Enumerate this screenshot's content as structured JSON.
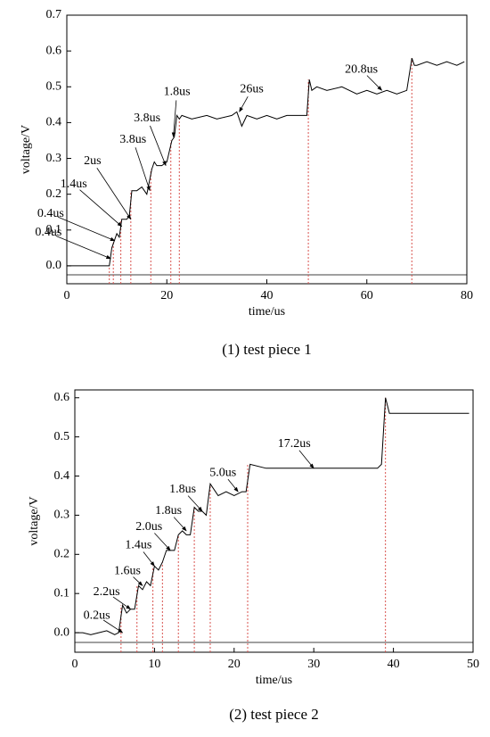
{
  "chart_data": [
    {
      "type": "line",
      "caption": "(1) test piece 1",
      "xlabel": "time/us",
      "ylabel": "voltage/V",
      "xlim": [
        0,
        80
      ],
      "xticks": [
        0,
        20,
        40,
        60,
        80
      ],
      "ylim": [
        -0.05,
        0.7
      ],
      "yticks": [
        {
          "value": 0,
          "label": "0.0"
        },
        0.1,
        0.2,
        0.3,
        0.4,
        0.5,
        0.6,
        0.7
      ],
      "color": "#000000",
      "marker_color": "#d9534f",
      "hline": -0.025,
      "x": [
        0,
        8.5,
        9,
        9.5,
        10,
        10.5,
        11,
        12,
        12.5,
        13,
        14,
        15,
        16,
        17,
        17.5,
        18,
        19,
        20,
        21,
        21.5,
        22,
        22.5,
        23,
        25,
        28,
        30,
        33,
        34,
        35,
        36,
        38,
        40,
        42,
        44,
        46,
        48,
        48.5,
        49,
        50,
        52,
        55,
        58,
        60,
        62,
        64,
        66,
        68,
        69,
        69.5,
        70,
        72,
        74,
        76,
        78,
        79.5
      ],
      "values": [
        0,
        0,
        0.05,
        0.07,
        0.09,
        0.08,
        0.13,
        0.13,
        0.14,
        0.21,
        0.21,
        0.22,
        0.2,
        0.27,
        0.29,
        0.28,
        0.28,
        0.29,
        0.35,
        0.36,
        0.42,
        0.41,
        0.42,
        0.41,
        0.42,
        0.41,
        0.42,
        0.43,
        0.39,
        0.42,
        0.41,
        0.42,
        0.41,
        0.42,
        0.42,
        0.42,
        0.52,
        0.49,
        0.5,
        0.49,
        0.5,
        0.48,
        0.49,
        0.48,
        0.49,
        0.48,
        0.49,
        0.58,
        0.56,
        0.56,
        0.57,
        0.56,
        0.57,
        0.56,
        0.57
      ],
      "markers": [
        8.5,
        9.3,
        10.8,
        12.8,
        16.8,
        20.8,
        22.5,
        48.3,
        69
      ],
      "annotations": [
        {
          "text": "0.4us",
          "x": 8.8,
          "y": 0.02
        },
        {
          "text": "0.4us",
          "x": 9.6,
          "y": 0.07
        },
        {
          "text": "1.4us",
          "x": 11,
          "y": 0.11
        },
        {
          "text": "2us",
          "x": 12.8,
          "y": 0.13
        },
        {
          "text": "3.8us",
          "x": 16.6,
          "y": 0.21
        },
        {
          "text": "3.8us",
          "x": 19.8,
          "y": 0.28
        },
        {
          "text": "1.8us",
          "x": 21.3,
          "y": 0.36
        },
        {
          "text": "26us",
          "x": 34.5,
          "y": 0.43
        },
        {
          "text": "20.8us",
          "x": 63,
          "y": 0.49
        }
      ]
    },
    {
      "type": "line",
      "caption": "(2) test piece 2",
      "xlabel": "time/us",
      "ylabel": "voltage/V",
      "xlim": [
        0,
        50
      ],
      "xticks": [
        0,
        10,
        20,
        30,
        40,
        50
      ],
      "ylim": [
        -0.05,
        0.62
      ],
      "yticks": [
        {
          "value": 0,
          "label": "0.0"
        },
        0.1,
        0.2,
        0.3,
        0.4,
        0.5,
        0.6
      ],
      "color": "#000000",
      "marker_color": "#d9534f",
      "hline": -0.025,
      "x": [
        0,
        1,
        2,
        3,
        4,
        5,
        5.5,
        6,
        6.5,
        7,
        7.5,
        8,
        8.5,
        9,
        9.5,
        10,
        10.5,
        11,
        11.5,
        12,
        12.5,
        13,
        13.5,
        14,
        14.5,
        15,
        15.5,
        16,
        16.5,
        17,
        18,
        19,
        20,
        21,
        21.5,
        22,
        24,
        26,
        28,
        30,
        32,
        34,
        36,
        38,
        38.5,
        39,
        39.5,
        40,
        42,
        44,
        46,
        48,
        49.5
      ],
      "values": [
        0,
        0,
        -0.005,
        0,
        0.005,
        -0.005,
        0,
        0.07,
        0.05,
        0.06,
        0.06,
        0.12,
        0.11,
        0.13,
        0.12,
        0.17,
        0.16,
        0.18,
        0.21,
        0.21,
        0.21,
        0.25,
        0.26,
        0.25,
        0.25,
        0.32,
        0.31,
        0.31,
        0.3,
        0.38,
        0.35,
        0.36,
        0.35,
        0.36,
        0.36,
        0.43,
        0.42,
        0.42,
        0.42,
        0.42,
        0.42,
        0.42,
        0.42,
        0.42,
        0.43,
        0.6,
        0.56,
        0.56,
        0.56,
        0.56,
        0.56,
        0.56,
        0.56
      ],
      "markers": [
        5.8,
        7.8,
        9.8,
        11,
        13,
        15,
        17,
        21.7,
        39
      ],
      "annotations": [
        {
          "text": "0.2us",
          "x": 6,
          "y": 0
        },
        {
          "text": "2.2us",
          "x": 7,
          "y": 0.06
        },
        {
          "text": "1.6us",
          "x": 8.5,
          "y": 0.12
        },
        {
          "text": "1.4us",
          "x": 10,
          "y": 0.17
        },
        {
          "text": "2.0us",
          "x": 12,
          "y": 0.21
        },
        {
          "text": "1.8us",
          "x": 14,
          "y": 0.26
        },
        {
          "text": "1.8us",
          "x": 16,
          "y": 0.31
        },
        {
          "text": "5.0us",
          "x": 20.5,
          "y": 0.36
        },
        {
          "text": "17.2us",
          "x": 30,
          "y": 0.42
        }
      ]
    }
  ]
}
